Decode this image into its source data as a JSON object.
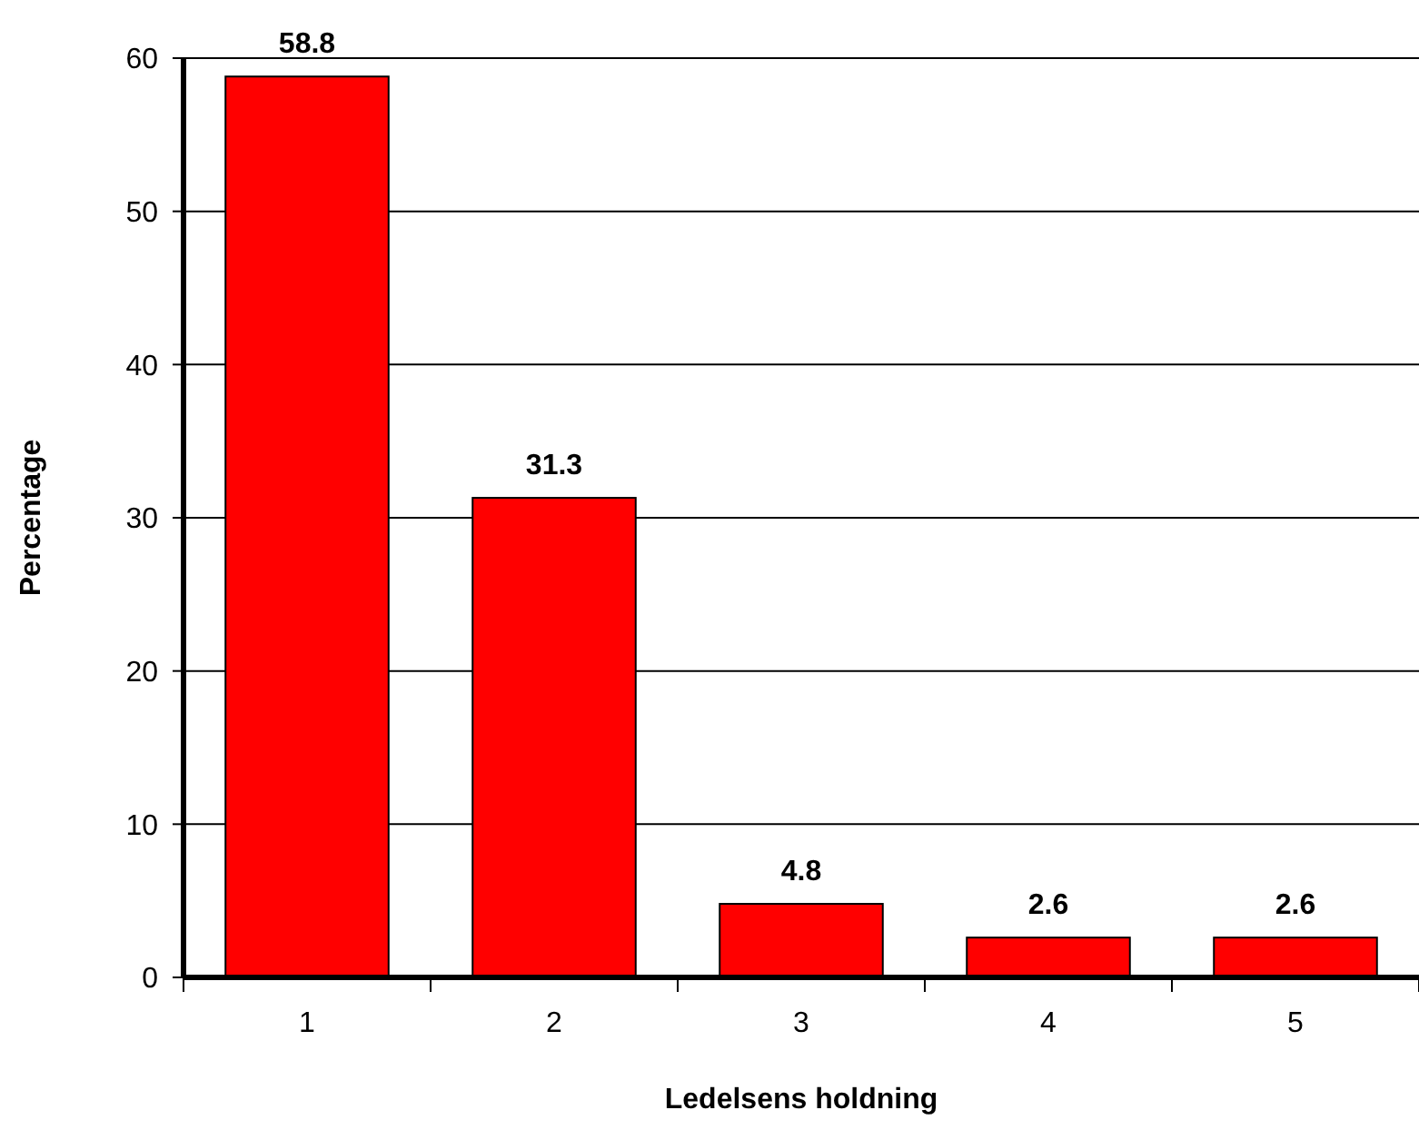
{
  "chart_data": {
    "type": "bar",
    "xlabel": "Ledelsens holdning",
    "ylabel": "Percentage",
    "categories": [
      "1",
      "2",
      "3",
      "4",
      "5"
    ],
    "values": [
      58.8,
      31.3,
      4.8,
      2.6,
      2.6
    ],
    "color": "#ff0000",
    "ylim": [
      0,
      60
    ],
    "yticks": [
      0,
      10,
      20,
      30,
      40,
      50,
      60
    ],
    "grid": "y",
    "data_labels": true
  }
}
